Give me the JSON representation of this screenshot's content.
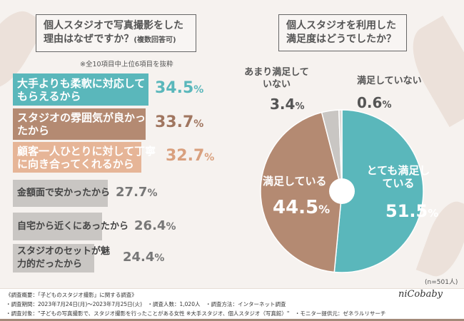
{
  "colors": {
    "teal": "#5ab7bb",
    "brown": "#b48a72",
    "peach": "#e6b597",
    "gray": "#c9c6c3",
    "lightgray": "#dedbd8"
  },
  "left": {
    "question": "個人スタジオで写真撮影をした",
    "question2": "理由はなぜですか？",
    "question_note": "(複数回答可)",
    "note": "※全10項目中上位6項目を抜粋"
  },
  "right": {
    "question": "個人スタジオを利用した",
    "question2": "満足度はどうでしたか？",
    "n": "(n=501人)"
  },
  "chart_data": [
    {
      "type": "bar",
      "orientation": "horizontal",
      "categories": [
        "大手よりも柔軟に対応してもらえるから",
        "スタジオの雰囲気が良かったから",
        "顧客一人ひとりに対して丁寧に向き合ってくれるから",
        "金額面で安かったから",
        "自宅から近くにあったから",
        "スタジオのセットが魅力的だったから"
      ],
      "values": [
        34.5,
        33.7,
        32.7,
        27.7,
        26.4,
        24.4
      ],
      "unit": "%",
      "labels": [
        "34.5",
        "33.7",
        "32.7",
        "27.7",
        "26.4",
        "24.4"
      ]
    },
    {
      "type": "pie",
      "categories": [
        "とても満足している",
        "満足している",
        "あまり満足していない",
        "満足していない"
      ],
      "values": [
        51.5,
        44.5,
        3.4,
        0.6
      ],
      "labels": [
        "51.5",
        "44.5",
        "3.4",
        "0.6"
      ],
      "unit": "%"
    }
  ],
  "footer": {
    "line1": "《調査概要：「子どものスタジオ撮影」に関する調査》",
    "line2": "・調査期間：2023年7月24日(月)～2023年7月25日(火)　・調査人数：1,020人　・調査方法：インターネット調査",
    "line3": "・調査対象：\"子どもの写真撮影で、スタジオ撮影を行ったことがある女性 ※大手スタジオ、個人スタジオ（写真館）\"　・モニター提供元：ゼネラルリサーチ",
    "logo": "niCobaby"
  }
}
